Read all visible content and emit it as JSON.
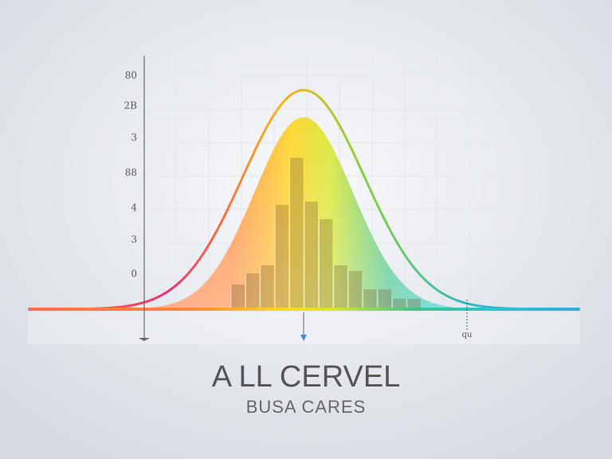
{
  "title": "A LL CERVEL",
  "subtitle": "BUSA CARES",
  "axis_labels": [
    "80",
    "2B",
    "3",
    "88",
    "4",
    "3",
    "0"
  ],
  "marker_label": "qu"
}
